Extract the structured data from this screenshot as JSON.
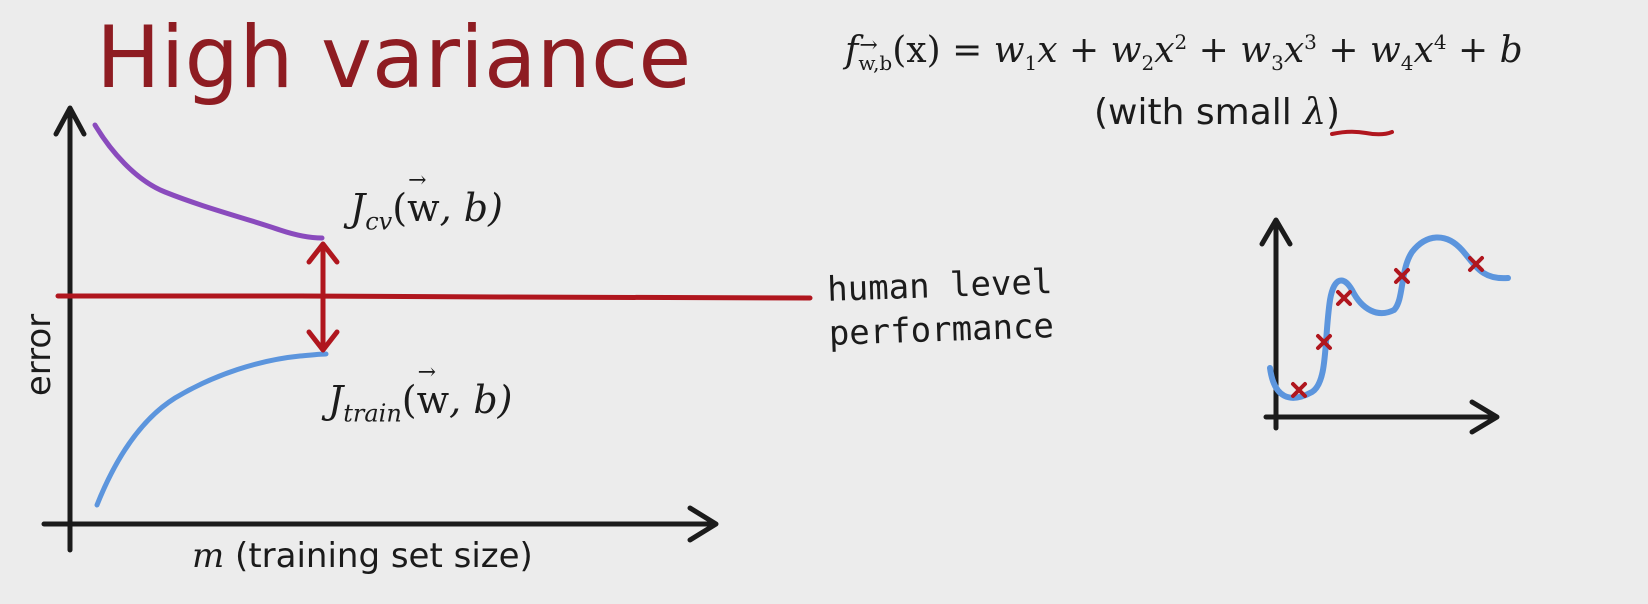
{
  "title": "High variance",
  "formula": {
    "f": "f",
    "f_sub": "w,b",
    "lhs_arg": "(x) = ",
    "terms": [
      {
        "w": "w",
        "sub": "1",
        "x": "x",
        "sup": ""
      },
      {
        "w": "w",
        "sub": "2",
        "x": "x",
        "sup": "2"
      },
      {
        "w": "w",
        "sub": "3",
        "x": "x",
        "sup": "3"
      },
      {
        "w": "w",
        "sub": "4",
        "x": "x",
        "sup": "4"
      }
    ],
    "plus": " + ",
    "bias": "b"
  },
  "lambda_note": {
    "prefix": "(with small ",
    "symbol": "λ",
    "suffix": ")"
  },
  "curve_labels": {
    "jcv": {
      "J": "J",
      "sub": "cv",
      "w": "w",
      "rest": ", b)"
    },
    "jtrain": {
      "J": "J",
      "sub": "train",
      "w": "w",
      "rest": ", b)"
    }
  },
  "baseline": {
    "line1": "human level",
    "line2": "performance"
  },
  "axes": {
    "ylabel": "error",
    "xlabel_var": "m",
    "xlabel_rest": " (training set size)"
  },
  "colors": {
    "title": "#8e1c22",
    "cv_curve": "#8a4bbd",
    "train_curve": "#5c95dd",
    "human_line": "#b0161e",
    "gap_arrow": "#b0161e",
    "mini_curve": "#5c95dd",
    "mini_points": "#b0161e"
  }
}
